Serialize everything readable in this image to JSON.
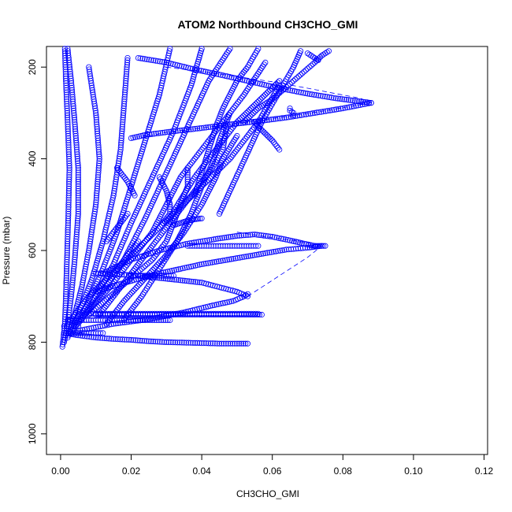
{
  "chart_data": {
    "type": "scatter",
    "title": "ATOM2 Northbound CH3CHO_GMI",
    "xlabel": "CH3CHO_GMI",
    "ylabel": "Pressure (mbar)",
    "xlim": [
      -0.004,
      0.121
    ],
    "ylim": [
      1045,
      155
    ],
    "y_reversed": true,
    "x_ticks": [
      0.0,
      0.02,
      0.04,
      0.06,
      0.08,
      0.1,
      0.12
    ],
    "x_tick_labels": [
      "0.00",
      "0.02",
      "0.04",
      "0.06",
      "0.08",
      "0.10",
      "0.12"
    ],
    "y_ticks": [
      200,
      400,
      600,
      800,
      1000
    ],
    "y_tick_labels": [
      "200",
      "400",
      "600",
      "800",
      "1000"
    ],
    "marker": "open-circle",
    "color": "#0000ff",
    "grid": false,
    "series": [
      {
        "x": [
          0.0005,
          0.0008,
          0.0012,
          0.0015,
          0.0018,
          0.0022,
          0.0025,
          0.002,
          0.0015,
          0.0012
        ],
        "y": [
          810,
          790,
          760,
          700,
          620,
          520,
          420,
          320,
          230,
          160
        ]
      },
      {
        "x": [
          0.001,
          0.002,
          0.003,
          0.004,
          0.005,
          0.005,
          0.004,
          0.003,
          0.002
        ],
        "y": [
          800,
          760,
          700,
          620,
          520,
          420,
          320,
          230,
          160
        ]
      },
      {
        "x": [
          0.002,
          0.004,
          0.006,
          0.008,
          0.01,
          0.011,
          0.01,
          0.008
        ],
        "y": [
          790,
          740,
          680,
          600,
          500,
          400,
          300,
          200
        ]
      },
      {
        "x": [
          0.003,
          0.006,
          0.009,
          0.012,
          0.015,
          0.017,
          0.018,
          0.019
        ],
        "y": [
          780,
          720,
          660,
          580,
          480,
          380,
          280,
          180
        ]
      },
      {
        "x": [
          0.004,
          0.008,
          0.012,
          0.016,
          0.02,
          0.024,
          0.028,
          0.031
        ],
        "y": [
          770,
          710,
          640,
          560,
          460,
          360,
          260,
          160
        ]
      },
      {
        "x": [
          0.005,
          0.01,
          0.015,
          0.02,
          0.026,
          0.032,
          0.037,
          0.04
        ],
        "y": [
          760,
          700,
          630,
          540,
          440,
          340,
          240,
          160
        ]
      },
      {
        "x": [
          0.006,
          0.012,
          0.018,
          0.024,
          0.03,
          0.036,
          0.042,
          0.048
        ],
        "y": [
          750,
          690,
          620,
          530,
          430,
          330,
          230,
          160
        ]
      },
      {
        "x": [
          0.007,
          0.014,
          0.02,
          0.026,
          0.03,
          0.034,
          0.04,
          0.046,
          0.052,
          0.058
        ],
        "y": [
          740,
          680,
          620,
          560,
          500,
          440,
          380,
          320,
          260,
          190
        ]
      },
      {
        "x": [
          0.002,
          0.008,
          0.016,
          0.024,
          0.032,
          0.04,
          0.048,
          0.056,
          0.062
        ],
        "y": [
          760,
          700,
          640,
          580,
          520,
          460,
          400,
          320,
          240
        ]
      },
      {
        "x": [
          0.008,
          0.014,
          0.02,
          0.026,
          0.03,
          0.032,
          0.034,
          0.036,
          0.036
        ],
        "y": [
          740,
          700,
          660,
          620,
          580,
          540,
          500,
          460,
          420
        ]
      },
      {
        "x": [
          0.011,
          0.016,
          0.021,
          0.026,
          0.032,
          0.038,
          0.043,
          0.046,
          0.047
        ],
        "y": [
          740,
          690,
          640,
          590,
          530,
          470,
          420,
          380,
          330
        ]
      },
      {
        "x": [
          0.013,
          0.018,
          0.024,
          0.03,
          0.035,
          0.04,
          0.044,
          0.046,
          0.05
        ],
        "y": [
          760,
          710,
          660,
          610,
          560,
          500,
          440,
          400,
          350
        ]
      },
      {
        "x": [
          0.018,
          0.023,
          0.028,
          0.033,
          0.037,
          0.04,
          0.043,
          0.045,
          0.048
        ],
        "y": [
          750,
          700,
          640,
          580,
          520,
          460,
          410,
          360,
          300
        ]
      },
      {
        "x": [
          0.038,
          0.04,
          0.042,
          0.044,
          0.046,
          0.048,
          0.05,
          0.053,
          0.056
        ],
        "y": [
          480,
          430,
          380,
          330,
          290,
          260,
          230,
          200,
          160
        ]
      },
      {
        "x": [
          0.045,
          0.048,
          0.051,
          0.054,
          0.057,
          0.06,
          0.063,
          0.066,
          0.068
        ],
        "y": [
          520,
          470,
          420,
          370,
          320,
          280,
          240,
          200,
          165
        ]
      },
      {
        "x": [
          0.03,
          0.034,
          0.038,
          0.042,
          0.046,
          0.05,
          0.054,
          0.058,
          0.062
        ],
        "y": [
          540,
          490,
          440,
          400,
          360,
          320,
          290,
          260,
          230
        ]
      },
      {
        "x": [
          0.052,
          0.056,
          0.06,
          0.063,
          0.066,
          0.069,
          0.072,
          0.074,
          0.076
        ],
        "y": [
          320,
          290,
          270,
          250,
          230,
          210,
          190,
          175,
          165
        ]
      },
      {
        "x": [
          0.005,
          0.015,
          0.025,
          0.035,
          0.043,
          0.049,
          0.052,
          0.053
        ],
        "y": [
          775,
          760,
          750,
          735,
          720,
          710,
          700,
          695
        ]
      },
      {
        "x": [
          0.053,
          0.05,
          0.045,
          0.04,
          0.034,
          0.028,
          0.022,
          0.016,
          0.01
        ],
        "y": [
          700,
          690,
          680,
          670,
          665,
          660,
          655,
          652,
          650
        ]
      },
      {
        "x": [
          0.01,
          0.016,
          0.022,
          0.028,
          0.034,
          0.04,
          0.046,
          0.052,
          0.058,
          0.064,
          0.07,
          0.074
        ],
        "y": [
          690,
          675,
          662,
          650,
          640,
          630,
          622,
          614,
          606,
          598,
          594,
          590
        ]
      },
      {
        "x": [
          0.012,
          0.02,
          0.028,
          0.036,
          0.044,
          0.05,
          0.055,
          0.06,
          0.065,
          0.069,
          0.072
        ],
        "y": [
          650,
          620,
          600,
          585,
          575,
          568,
          565,
          570,
          578,
          585,
          590
        ]
      },
      {
        "x": [
          0.008,
          0.016,
          0.024,
          0.032,
          0.04,
          0.048,
          0.056
        ],
        "y": [
          738,
          738,
          738,
          738,
          738,
          738,
          738
        ]
      },
      {
        "x": [
          0.01,
          0.018,
          0.026,
          0.034,
          0.042,
          0.05,
          0.057
        ],
        "y": [
          740,
          740,
          740,
          740,
          740,
          740,
          740
        ]
      },
      {
        "x": [
          0.036,
          0.04,
          0.044,
          0.048,
          0.052,
          0.056
        ],
        "y": [
          590,
          590,
          590,
          590,
          590,
          590
        ]
      },
      {
        "x": [
          0.072,
          0.073,
          0.074,
          0.075
        ],
        "y": [
          590,
          590,
          590,
          590
        ]
      },
      {
        "x": [
          0.001,
          0.005,
          0.01,
          0.015,
          0.02,
          0.025,
          0.03,
          0.035,
          0.04,
          0.045,
          0.05,
          0.053
        ],
        "y": [
          780,
          785,
          790,
          793,
          795,
          798,
          800,
          801,
          802,
          803,
          803,
          803
        ]
      },
      {
        "x": [
          0.001,
          0.006,
          0.012
        ],
        "y": [
          780,
          780,
          780
        ]
      },
      {
        "x": [
          0.002,
          0.008,
          0.014,
          0.02,
          0.026,
          0.031
        ],
        "y": [
          752,
          752,
          752,
          752,
          752,
          752
        ]
      },
      {
        "x": [
          0.001,
          0.003,
          0.005
        ],
        "y": [
          765,
          765,
          765
        ]
      },
      {
        "x": [
          0.02,
          0.022,
          0.024,
          0.026,
          0.028,
          0.03,
          0.032
        ],
        "y": [
          655,
          655,
          655,
          655,
          655,
          655,
          655
        ]
      },
      {
        "x": [
          0.065,
          0.065,
          0.066,
          0.066
        ],
        "y": [
          290,
          295,
          300,
          305
        ]
      },
      {
        "x": [
          0.055,
          0.056,
          0.058,
          0.06,
          0.062
        ],
        "y": [
          320,
          330,
          345,
          360,
          380
        ]
      },
      {
        "x": [
          0.022,
          0.03,
          0.038,
          0.046,
          0.054,
          0.062,
          0.07,
          0.078,
          0.084,
          0.088
        ],
        "y": [
          180,
          190,
          205,
          218,
          232,
          246,
          258,
          268,
          274,
          278
        ]
      },
      {
        "x": [
          0.088,
          0.08,
          0.072,
          0.064,
          0.056,
          0.048,
          0.04,
          0.032,
          0.024,
          0.02
        ],
        "y": [
          278,
          290,
          300,
          310,
          318,
          325,
          333,
          340,
          348,
          355
        ]
      },
      {
        "x": [
          0.032,
          0.034,
          0.036,
          0.038,
          0.04
        ],
        "y": [
          545,
          540,
          535,
          532,
          530
        ]
      },
      {
        "x": [
          0.07,
          0.071,
          0.072,
          0.073
        ],
        "y": [
          170,
          175,
          180,
          185
        ]
      },
      {
        "x": [
          0.028,
          0.03,
          0.031,
          0.031,
          0.029
        ],
        "y": [
          440,
          470,
          500,
          520,
          540
        ]
      },
      {
        "x": [
          0.016,
          0.019,
          0.021
        ],
        "y": [
          420,
          450,
          480
        ]
      },
      {
        "x": [
          0.013,
          0.015,
          0.017,
          0.019
        ],
        "y": [
          580,
          560,
          540,
          520
        ]
      },
      {
        "x": [
          0.016,
          0.018,
          0.02,
          0.022
        ],
        "y": [
          640,
          620,
          600,
          580
        ]
      }
    ],
    "dashed_connectors": [
      {
        "x": [
          0.03,
          0.045,
          0.06,
          0.07,
          0.078,
          0.085,
          0.088
        ],
        "y": [
          200,
          215,
          232,
          246,
          258,
          268,
          278
        ]
      },
      {
        "x": [
          0.088,
          0.075,
          0.06,
          0.045,
          0.03,
          0.022
        ],
        "y": [
          278,
          295,
          312,
          328,
          342,
          356
        ]
      },
      {
        "x": [
          0.05,
          0.058,
          0.066,
          0.072,
          0.074
        ],
        "y": [
          560,
          570,
          578,
          586,
          590
        ]
      },
      {
        "x": [
          0.053,
          0.058,
          0.064,
          0.07,
          0.074
        ],
        "y": [
          700,
          675,
          645,
          615,
          590
        ]
      }
    ]
  }
}
